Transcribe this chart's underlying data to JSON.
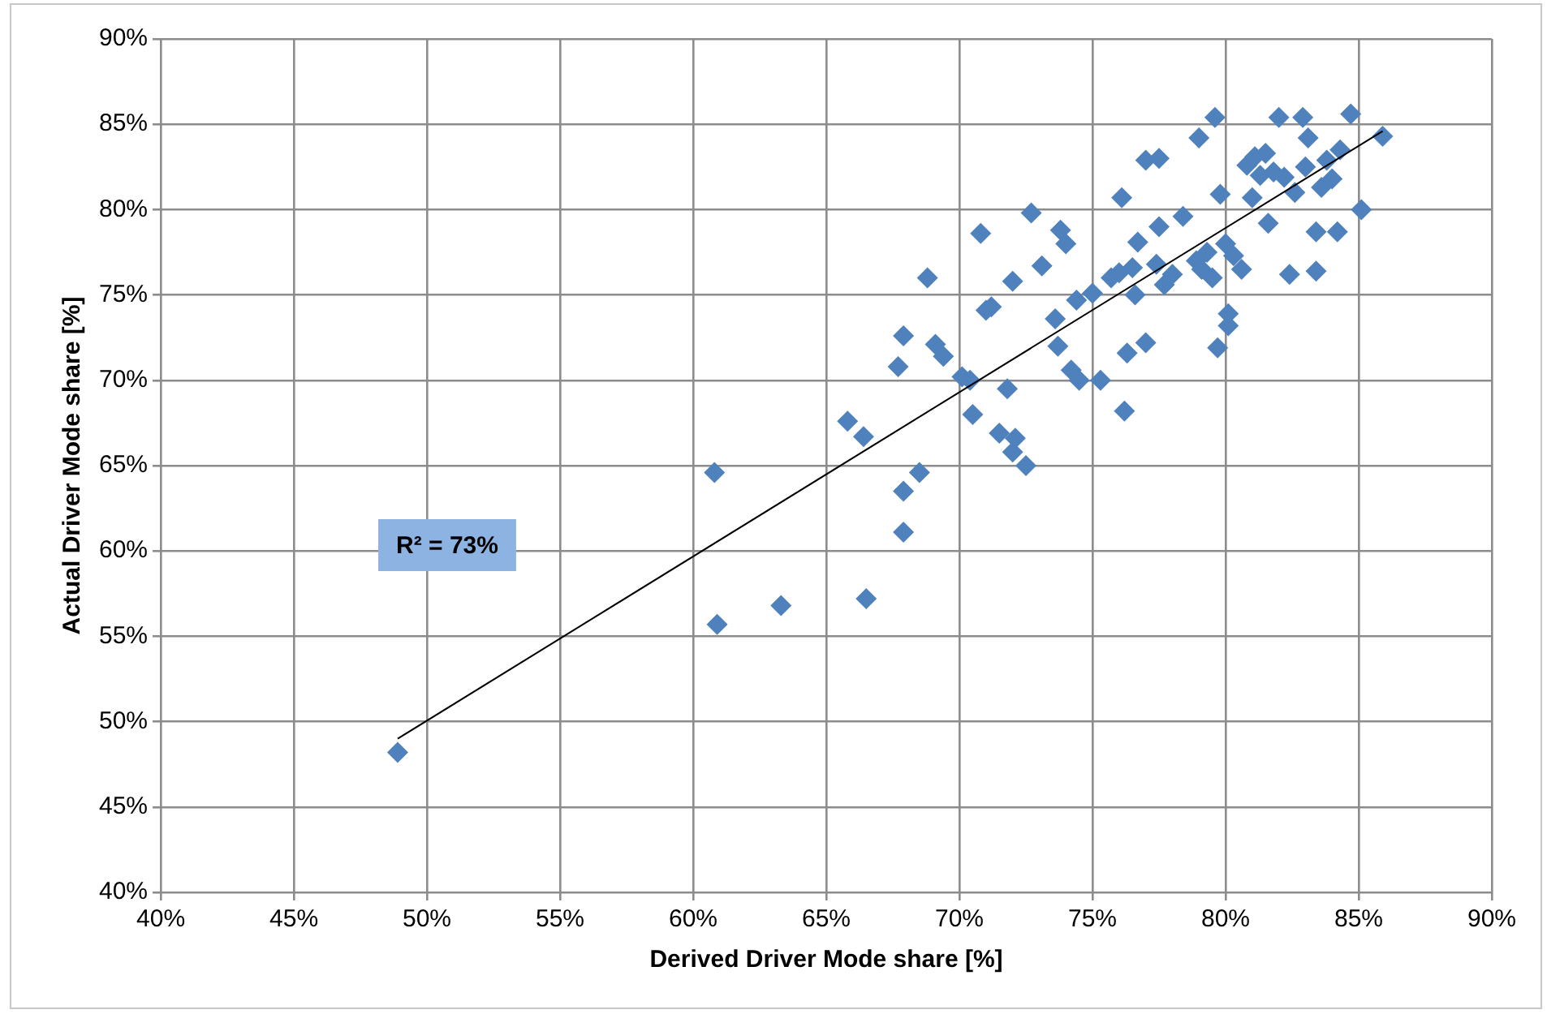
{
  "chart_data": {
    "type": "scatter",
    "xlabel": "Derived Driver Mode share [%]",
    "ylabel": "Actual Driver Mode share [%]",
    "annotations": [
      "R² = 73%"
    ],
    "xlim": [
      40,
      90
    ],
    "ylim": [
      40,
      90
    ],
    "xticks": [
      {
        "value": 40,
        "label": "40%"
      },
      {
        "value": 45,
        "label": "45%"
      },
      {
        "value": 50,
        "label": "50%"
      },
      {
        "value": 55,
        "label": "55%"
      },
      {
        "value": 60,
        "label": "60%"
      },
      {
        "value": 65,
        "label": "65%"
      },
      {
        "value": 70,
        "label": "70%"
      },
      {
        "value": 75,
        "label": "75%"
      },
      {
        "value": 80,
        "label": "80%"
      },
      {
        "value": 85,
        "label": "85%"
      },
      {
        "value": 90,
        "label": "90%"
      }
    ],
    "yticks": [
      {
        "value": 40,
        "label": "40%"
      },
      {
        "value": 45,
        "label": "45%"
      },
      {
        "value": 50,
        "label": "50%"
      },
      {
        "value": 55,
        "label": "55%"
      },
      {
        "value": 60,
        "label": "60%"
      },
      {
        "value": 65,
        "label": "65%"
      },
      {
        "value": 70,
        "label": "70%"
      },
      {
        "value": 75,
        "label": "75%"
      },
      {
        "value": 80,
        "label": "80%"
      },
      {
        "value": 85,
        "label": "85%"
      },
      {
        "value": 90,
        "label": "90%"
      }
    ],
    "grid": true,
    "legend": false,
    "marker": "diamond",
    "series": [
      {
        "color": "#4f81bd",
        "x": [
          48.9,
          60.8,
          60.9,
          63.3,
          65.8,
          66.4,
          66.5,
          67.7,
          67.9,
          67.9,
          67.9,
          68.5,
          68.8,
          69.1,
          69.4,
          70.1,
          70.4,
          70.5,
          70.8,
          71.0,
          71.2,
          71.5,
          71.8,
          72.0,
          72.0,
          72.1,
          72.5,
          72.7,
          73.1,
          73.6,
          73.7,
          73.8,
          74.0,
          74.2,
          74.4,
          74.5,
          75.0,
          75.3,
          75.7,
          76.0,
          76.1,
          76.2,
          76.3,
          76.5,
          76.6,
          76.7,
          77.0,
          77.0,
          77.4,
          77.5,
          77.5,
          77.7,
          78.0,
          78.4,
          78.9,
          79.0,
          79.1,
          79.3,
          79.5,
          79.6,
          79.7,
          79.8,
          80.0,
          80.1,
          80.1,
          80.3,
          80.6,
          80.8,
          81.0,
          81.1,
          81.3,
          81.5,
          81.6,
          81.8,
          82.0,
          82.2,
          82.4,
          82.6,
          82.9,
          83.0,
          83.1,
          83.4,
          83.4,
          83.6,
          83.8,
          84.0,
          84.2,
          84.3,
          84.7,
          85.1,
          85.9
        ],
        "values": [
          48.2,
          64.6,
          55.7,
          56.8,
          67.6,
          66.7,
          57.2,
          70.8,
          72.6,
          63.5,
          61.1,
          64.6,
          76.0,
          72.1,
          71.4,
          70.2,
          70.0,
          68.0,
          78.6,
          74.1,
          74.3,
          66.9,
          69.5,
          75.8,
          65.8,
          66.6,
          65.0,
          79.8,
          76.7,
          73.6,
          72.0,
          78.8,
          78.0,
          70.6,
          74.7,
          70.0,
          75.1,
          70.0,
          76.0,
          76.3,
          80.7,
          68.2,
          71.6,
          76.6,
          75.0,
          78.1,
          72.2,
          82.9,
          76.8,
          83.0,
          79.0,
          75.6,
          76.2,
          79.6,
          77.0,
          84.2,
          76.5,
          77.5,
          76.0,
          85.4,
          71.9,
          80.9,
          78.0,
          73.9,
          73.2,
          77.3,
          76.5,
          82.6,
          80.7,
          83.1,
          82.0,
          83.3,
          79.2,
          82.2,
          85.4,
          81.9,
          76.2,
          81.0,
          85.4,
          82.5,
          84.2,
          76.4,
          78.7,
          81.3,
          82.9,
          81.8,
          78.7,
          83.5,
          85.6,
          80.0,
          84.3
        ]
      },
      {
        "type": "line",
        "color": "#000000",
        "marker": "none",
        "x": [
          48.9,
          85.9
        ],
        "values": [
          49.0,
          84.6
        ]
      }
    ]
  }
}
